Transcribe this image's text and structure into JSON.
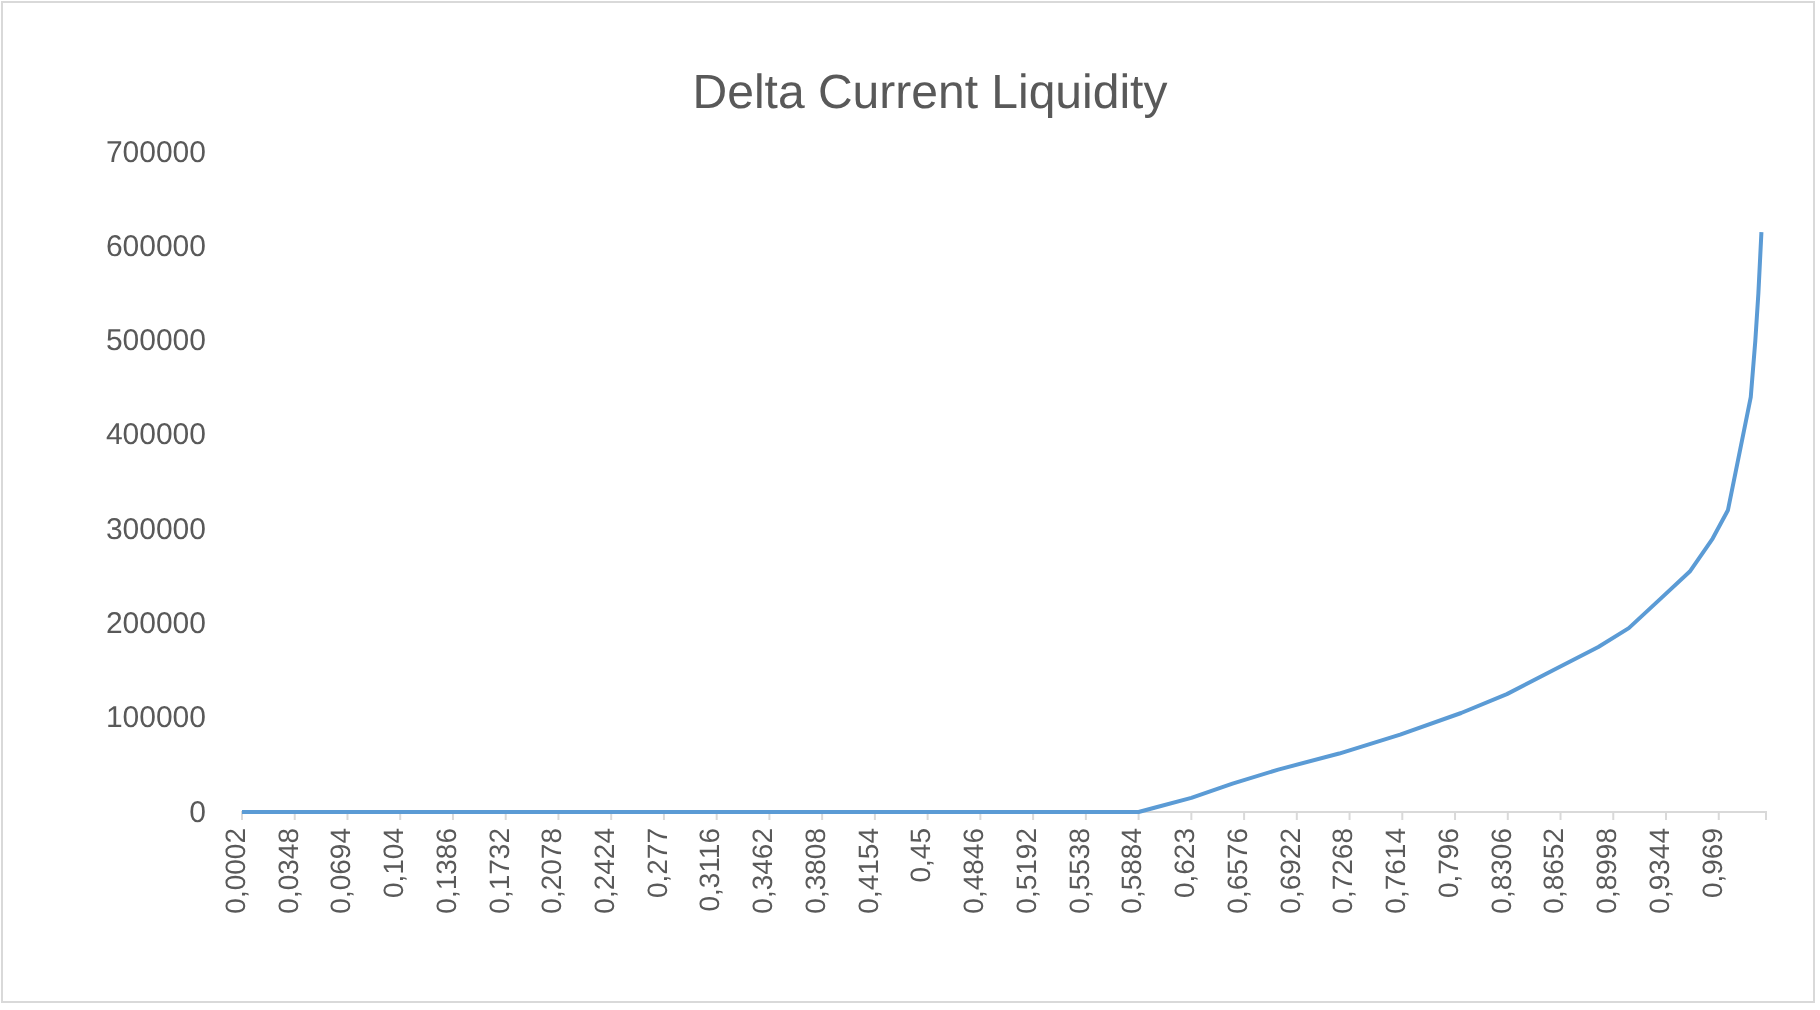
{
  "chart_data": {
    "type": "line",
    "title": "Delta Current Liquidity",
    "x": [
      0.0002,
      0.1,
      0.2,
      0.3,
      0.4,
      0.5,
      0.5884,
      0.6,
      0.623,
      0.65,
      0.68,
      0.72,
      0.76,
      0.8,
      0.83,
      0.86,
      0.89,
      0.91,
      0.93,
      0.95,
      0.965,
      0.975,
      0.98,
      0.985,
      0.99,
      0.993,
      0.995,
      0.997
    ],
    "series": [
      {
        "color": "#5b9bd5",
        "values": [
          0,
          0,
          0,
          0,
          0,
          0,
          0,
          5000,
          15000,
          30000,
          45000,
          62000,
          82000,
          105000,
          125000,
          150000,
          175000,
          195000,
          225000,
          255000,
          290000,
          320000,
          360000,
          400000,
          440000,
          500000,
          550000,
          615000
        ]
      }
    ],
    "xlim": [
      0.0002,
      1
    ],
    "xticks": [
      {
        "value": 0.0002,
        "label": "0,0002"
      },
      {
        "value": 0.0348,
        "label": "0,0348"
      },
      {
        "value": 0.0694,
        "label": "0,0694"
      },
      {
        "value": 0.104,
        "label": "0,104"
      },
      {
        "value": 0.1386,
        "label": "0,1386"
      },
      {
        "value": 0.1732,
        "label": "0,1732"
      },
      {
        "value": 0.2078,
        "label": "0,2078"
      },
      {
        "value": 0.2424,
        "label": "0,2424"
      },
      {
        "value": 0.277,
        "label": "0,277"
      },
      {
        "value": 0.3116,
        "label": "0,3116"
      },
      {
        "value": 0.3462,
        "label": "0,3462"
      },
      {
        "value": 0.3808,
        "label": "0,3808"
      },
      {
        "value": 0.4154,
        "label": "0,4154"
      },
      {
        "value": 0.45,
        "label": "0,45"
      },
      {
        "value": 0.4846,
        "label": "0,4846"
      },
      {
        "value": 0.5192,
        "label": "0,5192"
      },
      {
        "value": 0.5538,
        "label": "0,5538"
      },
      {
        "value": 0.5884,
        "label": "0,5884"
      },
      {
        "value": 0.623,
        "label": "0,623"
      },
      {
        "value": 0.6576,
        "label": "0,6576"
      },
      {
        "value": 0.6922,
        "label": "0,6922"
      },
      {
        "value": 0.7268,
        "label": "0,7268"
      },
      {
        "value": 0.7614,
        "label": "0,7614"
      },
      {
        "value": 0.796,
        "label": "0,796"
      },
      {
        "value": 0.8306,
        "label": "0,8306"
      },
      {
        "value": 0.8652,
        "label": "0,8652"
      },
      {
        "value": 0.8998,
        "label": "0,8998"
      },
      {
        "value": 0.9344,
        "label": "0,9344"
      },
      {
        "value": 0.969,
        "label": "0,969"
      }
    ],
    "ylim": [
      0,
      700000
    ],
    "yticks": [
      0,
      100000,
      200000,
      300000,
      400000,
      500000,
      600000,
      700000
    ],
    "grid": false,
    "marker": "none",
    "line_style": "solid"
  }
}
